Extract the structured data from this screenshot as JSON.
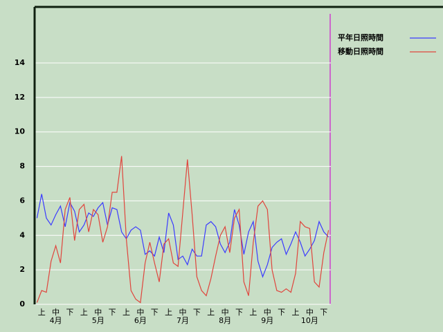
{
  "chart_data": {
    "type": "line",
    "categories": [
      null,
      "上",
      null,
      null,
      "中",
      null,
      null,
      "下",
      null,
      null,
      "上",
      null,
      null,
      "中",
      null,
      null,
      "下",
      null,
      null,
      "上",
      null,
      null,
      "中",
      null,
      null,
      "下",
      null,
      null,
      "上",
      null,
      null,
      "中",
      null,
      null,
      "下",
      null,
      null,
      "上",
      null,
      null,
      "中",
      null,
      null,
      "下",
      null,
      null,
      "上",
      null,
      null,
      "中",
      null,
      null,
      "下",
      null,
      null,
      "上",
      null,
      null,
      "中",
      null,
      null,
      "下",
      null
    ],
    "months": [
      "4月",
      "5月",
      "6月",
      "7月",
      "8月",
      "9月",
      "10月"
    ],
    "series": [
      {
        "name": "平年日照時間",
        "color": "#3a3aff",
        "values": [
          5.0,
          6.4,
          5.0,
          4.6,
          5.2,
          5.7,
          4.5,
          5.9,
          5.4,
          4.2,
          4.6,
          5.3,
          5.1,
          5.6,
          5.9,
          4.6,
          5.6,
          5.5,
          4.2,
          3.8,
          4.3,
          4.5,
          4.3,
          2.9,
          3.1,
          2.8,
          3.9,
          3.0,
          5.3,
          4.6,
          2.6,
          2.8,
          2.3,
          3.2,
          2.8,
          2.8,
          4.6,
          4.8,
          4.5,
          3.5,
          3.0,
          3.6,
          5.5,
          4.6,
          2.9,
          4.2,
          4.8,
          2.5,
          1.6,
          2.3,
          3.3,
          3.6,
          3.8,
          2.9,
          3.5,
          4.2,
          3.6,
          2.8,
          3.2,
          3.7,
          4.8,
          4.2,
          3.9
        ]
      },
      {
        "name": "移動日照時間",
        "color": "#e0443c",
        "values": [
          0.1,
          0.8,
          0.7,
          2.5,
          3.4,
          2.4,
          5.5,
          6.2,
          3.7,
          5.5,
          5.8,
          4.2,
          5.5,
          5.2,
          3.6,
          4.5,
          6.5,
          6.5,
          8.6,
          3.8,
          0.8,
          0.3,
          0.1,
          2.4,
          3.6,
          2.4,
          1.3,
          3.5,
          3.8,
          2.4,
          2.2,
          5.3,
          8.4,
          5.2,
          1.6,
          0.8,
          0.5,
          1.5,
          2.8,
          4.0,
          4.5,
          3.0,
          5.0,
          5.5,
          1.3,
          0.5,
          3.6,
          5.7,
          6.0,
          5.5,
          2.0,
          0.8,
          0.7,
          0.9,
          0.7,
          1.8,
          4.8,
          4.5,
          4.4,
          1.3,
          1.0,
          3.0,
          4.3
        ]
      }
    ],
    "ylim": [
      0,
      17.25
    ],
    "yticks": [
      0,
      2,
      4,
      6,
      8,
      10,
      12,
      14
    ],
    "grid": true
  }
}
